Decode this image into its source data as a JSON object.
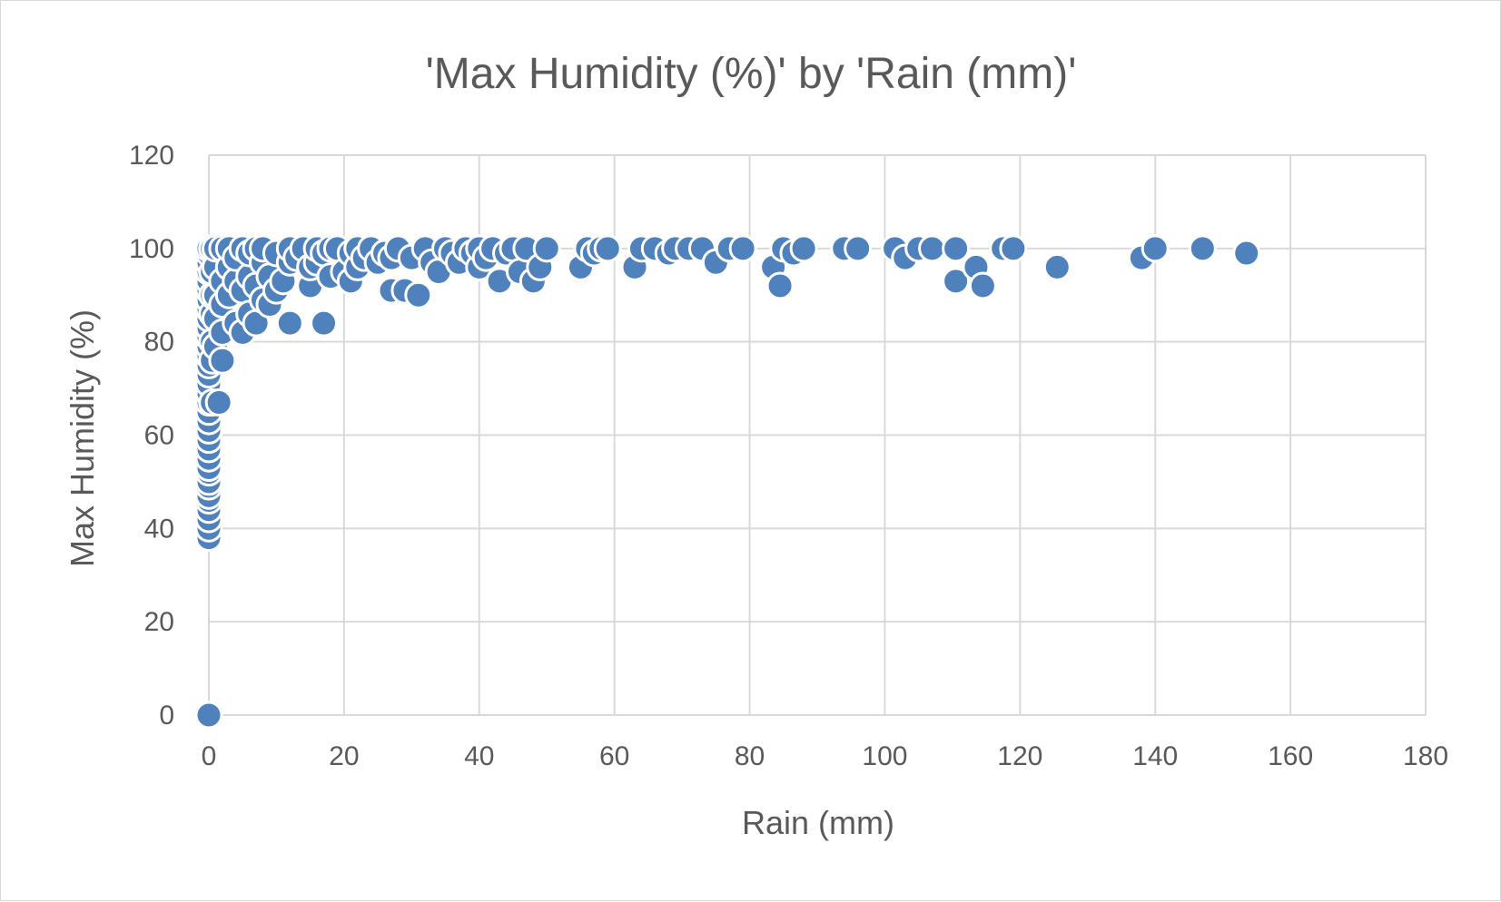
{
  "chart_data": {
    "type": "scatter",
    "title": "'Max Humidity (%)' by 'Rain (mm)'",
    "xlabel": "Rain (mm)",
    "ylabel": "Max Humidity (%)",
    "xlim": [
      0,
      180
    ],
    "ylim": [
      0,
      120
    ],
    "xticks": [
      0,
      20,
      40,
      60,
      80,
      100,
      120,
      140,
      160,
      180
    ],
    "yticks": [
      0,
      20,
      40,
      60,
      80,
      100,
      120
    ],
    "grid": true,
    "legend": "none",
    "marker_color": "#4f81bd",
    "series": [
      {
        "points": [
          [
            0,
            0
          ],
          [
            0,
            38
          ],
          [
            0,
            40
          ],
          [
            0,
            42
          ],
          [
            0,
            44
          ],
          [
            0,
            46
          ],
          [
            0,
            47
          ],
          [
            0,
            49
          ],
          [
            0,
            50
          ],
          [
            0,
            52
          ],
          [
            0,
            53
          ],
          [
            0,
            55
          ],
          [
            0,
            57
          ],
          [
            0,
            59
          ],
          [
            0,
            61
          ],
          [
            0,
            63
          ],
          [
            0,
            65
          ],
          [
            0,
            67
          ],
          [
            0,
            69
          ],
          [
            0,
            71
          ],
          [
            0,
            73
          ],
          [
            0,
            75
          ],
          [
            0,
            77
          ],
          [
            0,
            79
          ],
          [
            0,
            81
          ],
          [
            0,
            83
          ],
          [
            0,
            85
          ],
          [
            0,
            87
          ],
          [
            0,
            89
          ],
          [
            0,
            91
          ],
          [
            0,
            93
          ],
          [
            0,
            95
          ],
          [
            0,
            97
          ],
          [
            0,
            99
          ],
          [
            0,
            100
          ],
          [
            0.5,
            67
          ],
          [
            0.5,
            76
          ],
          [
            0.5,
            80
          ],
          [
            0.5,
            86
          ],
          [
            0.5,
            90
          ],
          [
            0.5,
            95
          ],
          [
            0.5,
            100
          ],
          [
            1,
            79
          ],
          [
            1,
            85
          ],
          [
            1,
            90
          ],
          [
            1,
            96
          ],
          [
            1,
            100
          ],
          [
            1.5,
            67
          ],
          [
            2,
            76
          ],
          [
            2,
            82
          ],
          [
            2,
            88
          ],
          [
            2,
            93
          ],
          [
            2,
            100
          ],
          [
            3,
            90
          ],
          [
            3,
            96
          ],
          [
            3,
            100
          ],
          [
            4,
            84
          ],
          [
            4,
            93
          ],
          [
            4,
            98
          ],
          [
            5,
            82
          ],
          [
            5,
            91
          ],
          [
            5,
            100
          ],
          [
            6,
            86
          ],
          [
            6,
            94
          ],
          [
            6,
            99
          ],
          [
            7,
            84
          ],
          [
            7,
            92
          ],
          [
            7,
            100
          ],
          [
            8,
            89
          ],
          [
            8,
            97
          ],
          [
            8,
            100
          ],
          [
            9,
            88
          ],
          [
            9,
            94
          ],
          [
            10,
            91
          ],
          [
            10,
            99
          ],
          [
            11,
            93
          ],
          [
            12,
            84
          ],
          [
            12,
            97
          ],
          [
            12,
            100
          ],
          [
            13,
            98
          ],
          [
            14,
            100
          ],
          [
            15,
            92
          ],
          [
            15,
            96
          ],
          [
            16,
            97
          ],
          [
            16,
            100
          ],
          [
            17,
            84
          ],
          [
            17,
            99
          ],
          [
            18,
            94
          ],
          [
            18,
            100
          ],
          [
            19,
            100
          ],
          [
            20,
            95
          ],
          [
            21,
            93
          ],
          [
            21,
            99
          ],
          [
            22,
            96
          ],
          [
            22,
            100
          ],
          [
            23,
            98
          ],
          [
            24,
            100
          ],
          [
            25,
            97
          ],
          [
            26,
            99
          ],
          [
            27,
            91
          ],
          [
            27,
            98
          ],
          [
            28,
            100
          ],
          [
            29,
            91
          ],
          [
            30,
            98
          ],
          [
            31,
            90
          ],
          [
            32,
            100
          ],
          [
            33,
            97
          ],
          [
            34,
            95
          ],
          [
            35,
            100
          ],
          [
            36,
            99
          ],
          [
            37,
            97
          ],
          [
            38,
            100
          ],
          [
            39,
            99
          ],
          [
            40,
            96
          ],
          [
            40,
            100
          ],
          [
            41,
            98
          ],
          [
            42,
            100
          ],
          [
            43,
            93
          ],
          [
            44,
            99
          ],
          [
            45,
            100
          ],
          [
            46,
            95
          ],
          [
            47,
            100
          ],
          [
            48,
            93
          ],
          [
            49,
            96
          ],
          [
            50,
            100
          ],
          [
            55,
            96
          ],
          [
            56,
            100
          ],
          [
            57,
            99
          ],
          [
            58,
            100
          ],
          [
            59,
            100
          ],
          [
            63,
            96
          ],
          [
            64,
            100
          ],
          [
            66,
            100
          ],
          [
            68,
            99
          ],
          [
            69,
            100
          ],
          [
            71,
            100
          ],
          [
            73,
            100
          ],
          [
            75,
            97
          ],
          [
            77,
            100
          ],
          [
            79,
            100
          ],
          [
            83.5,
            96
          ],
          [
            84.5,
            92
          ],
          [
            85,
            100
          ],
          [
            86.5,
            99
          ],
          [
            88,
            100
          ],
          [
            94,
            100
          ],
          [
            96,
            100
          ],
          [
            101.5,
            100
          ],
          [
            103,
            98
          ],
          [
            105,
            100
          ],
          [
            107,
            100
          ],
          [
            110.5,
            100
          ],
          [
            110.5,
            93
          ],
          [
            113.5,
            96
          ],
          [
            114.5,
            92
          ],
          [
            117.5,
            100
          ],
          [
            119,
            100
          ],
          [
            125.5,
            96
          ],
          [
            138,
            98
          ],
          [
            140,
            100
          ],
          [
            147,
            100
          ],
          [
            153.5,
            99
          ]
        ]
      }
    ]
  }
}
